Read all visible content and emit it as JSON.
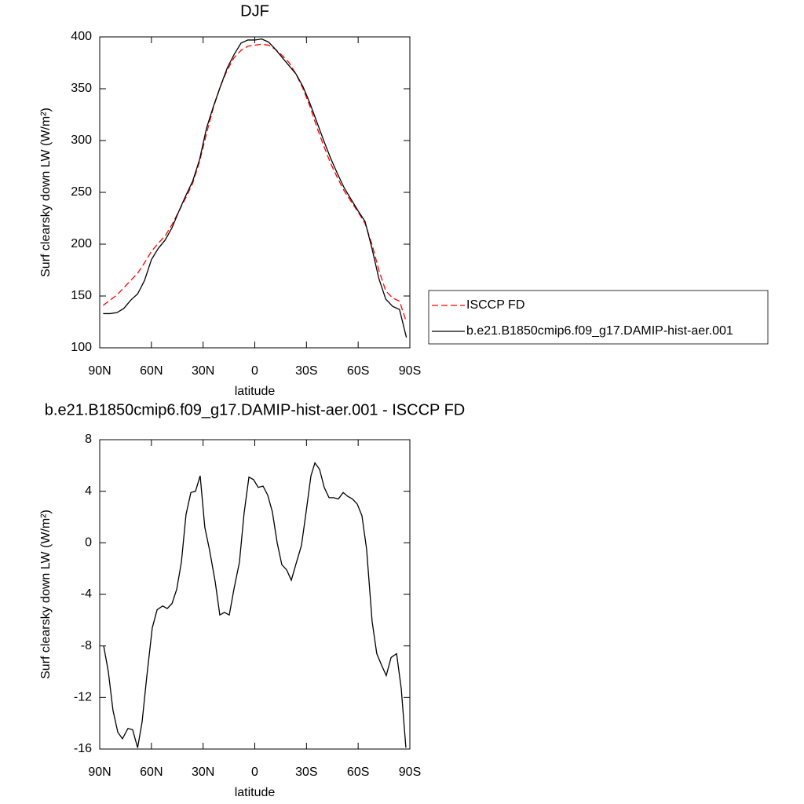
{
  "chart_data": [
    {
      "type": "line",
      "title": "DJF",
      "xlabel": "latitude",
      "ylabel": "Surf clearsky down LW (W/m²)",
      "xlim": [
        90,
        -90
      ],
      "xticks": [
        {
          "value": 90,
          "label": "90N"
        },
        {
          "value": 60,
          "label": "60N"
        },
        {
          "value": 30,
          "label": "30N"
        },
        0,
        {
          "value": -30,
          "label": "30S"
        },
        {
          "value": -60,
          "label": "60S"
        },
        {
          "value": -90,
          "label": "90S"
        }
      ],
      "ylim": [
        100,
        400
      ],
      "yticks": [
        100,
        150,
        200,
        250,
        300,
        350,
        400
      ],
      "legend": "right",
      "x": [
        88,
        84,
        80,
        76,
        72,
        68,
        64,
        60,
        56,
        52,
        48,
        44,
        40,
        36,
        32,
        28,
        24,
        20,
        16,
        12,
        8,
        4,
        0,
        -4,
        -8,
        -12,
        -16,
        -20,
        -24,
        -28,
        -32,
        -36,
        -40,
        -44,
        -48,
        -52,
        -56,
        -60,
        -64,
        -68,
        -72,
        -76,
        -80,
        -84,
        -88
      ],
      "series": [
        {
          "name": "ISCCP FD",
          "color": "#ff0000",
          "style": "dashed",
          "values": [
            141,
            146,
            151,
            158,
            165,
            172,
            182,
            193,
            201,
            208,
            219,
            232,
            245,
            259,
            280,
            307,
            332,
            352,
            368,
            380,
            387,
            391,
            392,
            393,
            392,
            388,
            382,
            375,
            364,
            350,
            333,
            313,
            295,
            278,
            264,
            251,
            241,
            231,
            220,
            200,
            175,
            155,
            148,
            145,
            125
          ]
        },
        {
          "name": "b.e21.B1850cmip6.f09_g17.DAMIP-hist-aer.001",
          "color": "#000000",
          "style": "solid",
          "values": [
            133,
            133,
            134,
            138,
            146,
            152,
            165,
            185,
            196,
            204,
            216,
            232,
            247,
            261,
            282,
            312,
            333,
            352,
            370,
            383,
            394,
            397,
            397,
            398,
            395,
            388,
            380,
            372,
            364,
            352,
            336,
            318,
            300,
            283,
            268,
            254,
            243,
            232,
            222,
            196,
            167,
            147,
            140,
            137,
            110
          ]
        }
      ]
    },
    {
      "type": "line",
      "title": "b.e21.B1850cmip6.f09_g17.DAMIP-hist-aer.001 - ISCCP FD",
      "xlabel": "latitude",
      "ylabel": "Surf clearsky down LW (W/m²)",
      "xlim": [
        90,
        -90
      ],
      "xticks": [
        {
          "value": 90,
          "label": "90N"
        },
        {
          "value": 60,
          "label": "60N"
        },
        {
          "value": 30,
          "label": "30N"
        },
        0,
        {
          "value": -30,
          "label": "30S"
        },
        {
          "value": -60,
          "label": "60S"
        },
        {
          "value": -90,
          "label": "90S"
        }
      ],
      "ylim": [
        -16,
        8
      ],
      "yticks": [
        -16,
        -12,
        -8,
        -4,
        0,
        4,
        8
      ],
      "x": [
        87.7,
        85,
        82.3,
        79.5,
        76.8,
        73.6,
        70.9,
        68,
        65.4,
        62.7,
        59.5,
        56.7,
        53.5,
        50.8,
        48,
        45.3,
        42.6,
        39.9,
        37.1,
        34.4,
        31.7,
        29,
        26.2,
        23,
        20.3,
        17.6,
        14.8,
        12.1,
        8.9,
        6.2,
        3.4,
        0.7,
        -2,
        -4.8,
        -7.5,
        -10.2,
        -13,
        -15.7,
        -18.5,
        -21.2,
        -24,
        -27.1,
        -29.8,
        -32.6,
        -34.9,
        -37.6,
        -40.3,
        -43.1,
        -45.8,
        -48.5,
        -51.3,
        -54,
        -56.7,
        -59.5,
        -62.2,
        -64.9,
        -68.1,
        -70.8,
        -73.6,
        -76.3,
        -79.1,
        -82.3,
        -85,
        -87.7
      ],
      "series": [
        {
          "color": "#000000",
          "style": "solid",
          "values": [
            -8,
            -10,
            -13,
            -14.7,
            -15.2,
            -14.4,
            -14.5,
            -15.9,
            -13.9,
            -10.4,
            -6.6,
            -5.2,
            -4.9,
            -5.1,
            -4.7,
            -3.6,
            -1.5,
            2.2,
            3.9,
            4,
            5.2,
            1.2,
            -0.6,
            -3,
            -5.6,
            -5.4,
            -5.6,
            -3.6,
            -1.5,
            2.3,
            5.1,
            4.9,
            4.3,
            4.4,
            3.7,
            2.4,
            0,
            -1.7,
            -2.1,
            -2.9,
            -1.6,
            -0.2,
            2.4,
            5.2,
            6.2,
            5.7,
            4.3,
            3.5,
            3.5,
            3.4,
            3.9,
            3.6,
            3.4,
            3,
            2.1,
            -0.5,
            -6.1,
            -8.6,
            -9.5,
            -10.3,
            -8.9,
            -8.6,
            -11.3,
            -15.9
          ]
        }
      ]
    }
  ]
}
